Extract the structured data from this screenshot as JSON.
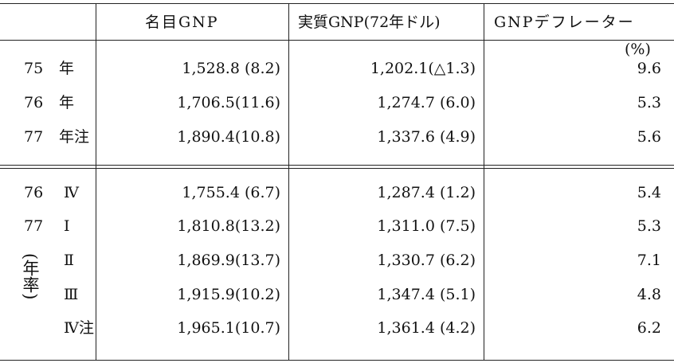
{
  "table": {
    "header": [
      "名目GNP",
      "実質GNP(72年ドル)",
      "GNPデフレーター"
    ],
    "unit": "(%)",
    "side_label": "(年率)",
    "sections": [
      [
        {
          "year": "75",
          "period": "年",
          "nominal": "1,528.8 (8.2)",
          "real": "1,202.1(△1.3)",
          "deflator": "9.6"
        },
        {
          "year": "76",
          "period": "年",
          "nominal": "1,706.5(11.6)",
          "real": "1,274.7 (6.0)",
          "deflator": "5.3"
        },
        {
          "year": "77",
          "period": "年注",
          "nominal": "1,890.4(10.8)",
          "real": "1,337.6 (4.9)",
          "deflator": "5.6"
        }
      ],
      [
        {
          "year": "76",
          "period": "Ⅳ",
          "nominal": "1,755.4 (6.7)",
          "real": "1,287.4 (1.2)",
          "deflator": "5.4"
        },
        {
          "year": "77",
          "period": "Ⅰ",
          "nominal": "1,810.8(13.2)",
          "real": "1,311.0 (7.5)",
          "deflator": "5.3"
        },
        {
          "period": "Ⅱ",
          "nominal": "1,869.9(13.7)",
          "real": "1,330.7 (6.2)",
          "deflator": "7.1"
        },
        {
          "period": "Ⅲ",
          "nominal": "1,915.9(10.2)",
          "real": "1,347.4 (5.1)",
          "deflator": "4.8"
        },
        {
          "period": "Ⅳ注",
          "nominal": "1,965.1(10.7)",
          "real": "1,361.4 (4.2)",
          "deflator": "6.2"
        }
      ]
    ]
  }
}
